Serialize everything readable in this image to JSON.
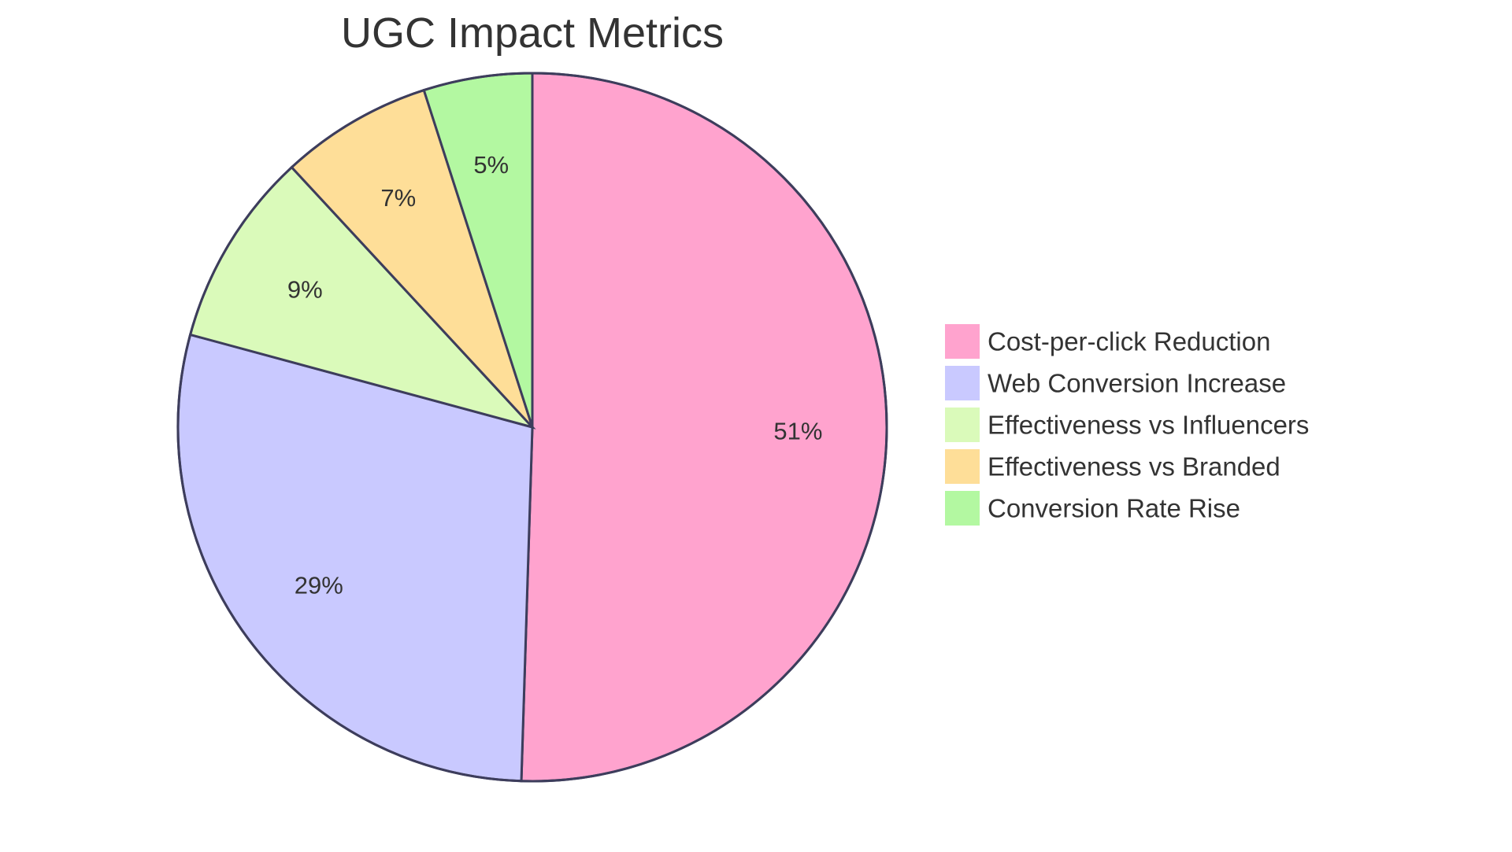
{
  "chart_data": {
    "type": "pie",
    "title": "UGC Impact Metrics",
    "legend_position": "right",
    "slices": [
      {
        "name": "Cost-per-click Reduction",
        "value": 51,
        "label": "51%",
        "color": "#FFA3CE"
      },
      {
        "name": "Web Conversion Increase",
        "value": 29,
        "label": "29%",
        "color": "#C9C9FF"
      },
      {
        "name": "Effectiveness vs Influencers",
        "value": 9,
        "label": "9%",
        "color": "#DAFABA"
      },
      {
        "name": "Effectiveness vs Branded",
        "value": 7,
        "label": "7%",
        "color": "#FEDE98"
      },
      {
        "name": "Conversion Rate Rise",
        "value": 5,
        "label": "5%",
        "color": "#B3F8A1"
      }
    ]
  }
}
